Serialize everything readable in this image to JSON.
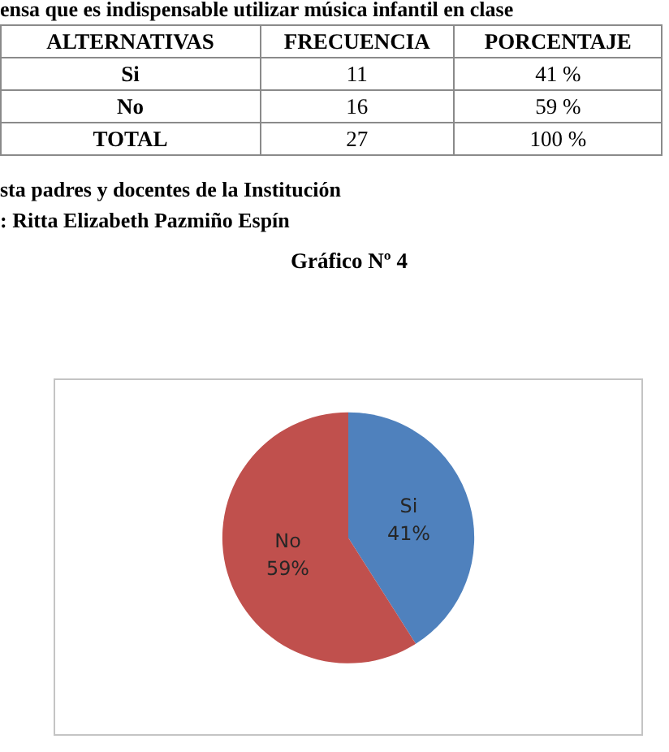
{
  "chart_data": {
    "type": "pie",
    "title": "Gráfico Nº 4",
    "categories": [
      "Si",
      "No"
    ],
    "values": [
      41,
      59
    ],
    "colors": [
      "#4f81bd",
      "#c0504d"
    ],
    "value_labels": [
      "41%",
      "59%"
    ],
    "annotations": [
      "ensa que es indispensable utilizar música infantil en clase",
      "ALTERNATIVAS",
      "FRECUENCIA",
      "PORCENTAJE",
      "Si",
      "11",
      "41 %",
      "No",
      "16",
      "59 %",
      "TOTAL",
      "27",
      "100 %",
      "sta padres y docentes de la Institución",
      ": Ritta Elizabeth Pazmiño Espín"
    ]
  }
}
